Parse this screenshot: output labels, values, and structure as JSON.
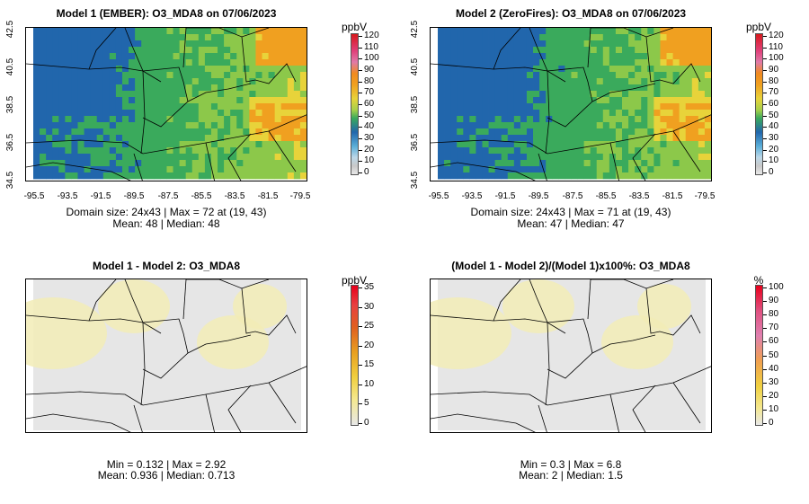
{
  "panels": [
    {
      "id": "p1",
      "title": "Model 1 (EMBER): O3_MDA8 on 07/06/2023",
      "unit": "ppbV",
      "cbar_labels": [
        "120",
        "110",
        "100",
        "90",
        "80",
        "70",
        "60",
        "50",
        "40",
        "30",
        "20",
        "10",
        "0"
      ],
      "y_labels": [
        "42.5",
        "40.5",
        "38.5",
        "36.5",
        "34.5"
      ],
      "x_labels": [
        "-95.5",
        "-93.5",
        "-91.5",
        "-89.5",
        "-87.5",
        "-85.5",
        "-83.5",
        "-81.5",
        "-79.5"
      ],
      "stats_line1": "Domain size: 24x43 | Max = 72 at (19, 43)",
      "stats_line2": "Mean: 48 |  Median: 48"
    },
    {
      "id": "p2",
      "title": "Model 2 (ZeroFires): O3_MDA8 on 07/06/2023",
      "unit": "ppbV",
      "cbar_labels": [
        "120",
        "110",
        "100",
        "90",
        "80",
        "70",
        "60",
        "50",
        "40",
        "30",
        "20",
        "10",
        "0"
      ],
      "y_labels": [
        "42.5",
        "40.5",
        "38.5",
        "36.5",
        "34.5"
      ],
      "x_labels": [
        "-95.5",
        "-93.5",
        "-91.5",
        "-89.5",
        "-87.5",
        "-85.5",
        "-83.5",
        "-81.5",
        "-79.5"
      ],
      "stats_line1": "Domain size: 24x43 | Max = 71 at (19, 43)",
      "stats_line2": "Mean: 47 |  Median: 47"
    },
    {
      "id": "p3",
      "title": "Model 1 - Model 2: O3_MDA8",
      "unit": "ppbV",
      "cbar_labels": [
        "35",
        "30",
        "25",
        "20",
        "15",
        "10",
        "5",
        "0"
      ],
      "stats_line1": "Min = 0.132 | Max = 2.92",
      "stats_line2": "Mean: 0.936 |  Median: 0.713"
    },
    {
      "id": "p4",
      "title": "(Model 1 - Model 2)/(Model 1)x100%: O3_MDA8",
      "unit": "%",
      "cbar_labels": [
        "100",
        "90",
        "80",
        "70",
        "60",
        "50",
        "40",
        "30",
        "20",
        "10",
        "0"
      ],
      "stats_line1": "Min = 0.3 | Max = 6.8",
      "stats_line2": "Mean: 2 |  Median: 1.5"
    }
  ],
  "colors": {
    "blue": "#2166ac",
    "green": "#3aaa5c",
    "yellow": "#e8d33a",
    "orange": "#f0a020",
    "diff_bg": "#e6e6e6",
    "diff_yellow": "#f2ecb6"
  }
}
